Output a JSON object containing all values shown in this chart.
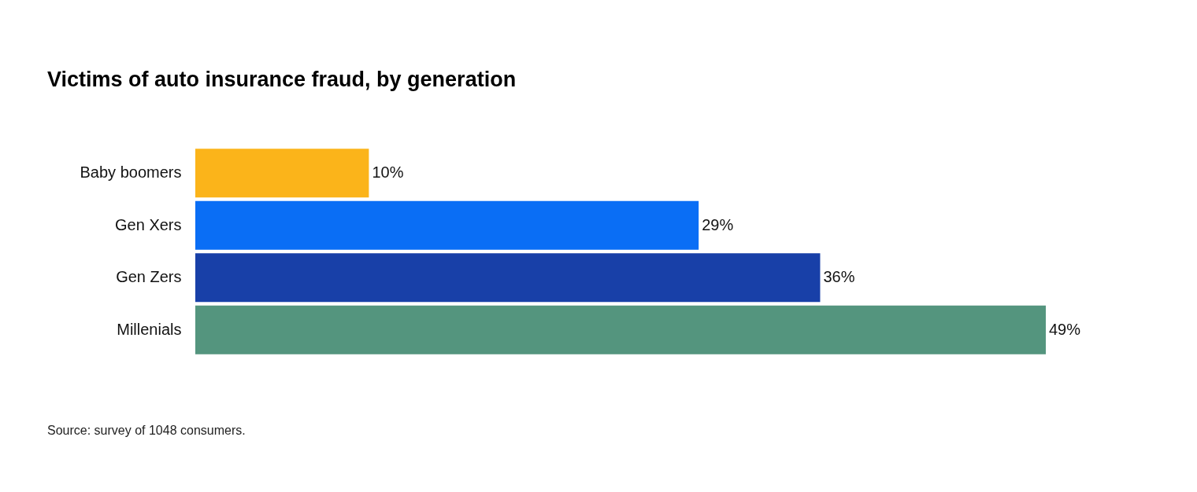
{
  "chart_data": {
    "type": "bar",
    "orientation": "horizontal",
    "title": "Victims of auto insurance fraud, by generation",
    "categories": [
      "Baby boomers",
      "Gen Xers",
      "Gen Zers",
      "Millenials"
    ],
    "values": [
      10,
      29,
      36,
      49
    ],
    "colors": [
      "#fbb41a",
      "#0a6ef5",
      "#1840a8",
      "#54957e"
    ],
    "value_labels": [
      "10%",
      "29%",
      "36%",
      "49%"
    ],
    "annotations": [
      "Source: survey of 1048 consumers."
    ]
  }
}
